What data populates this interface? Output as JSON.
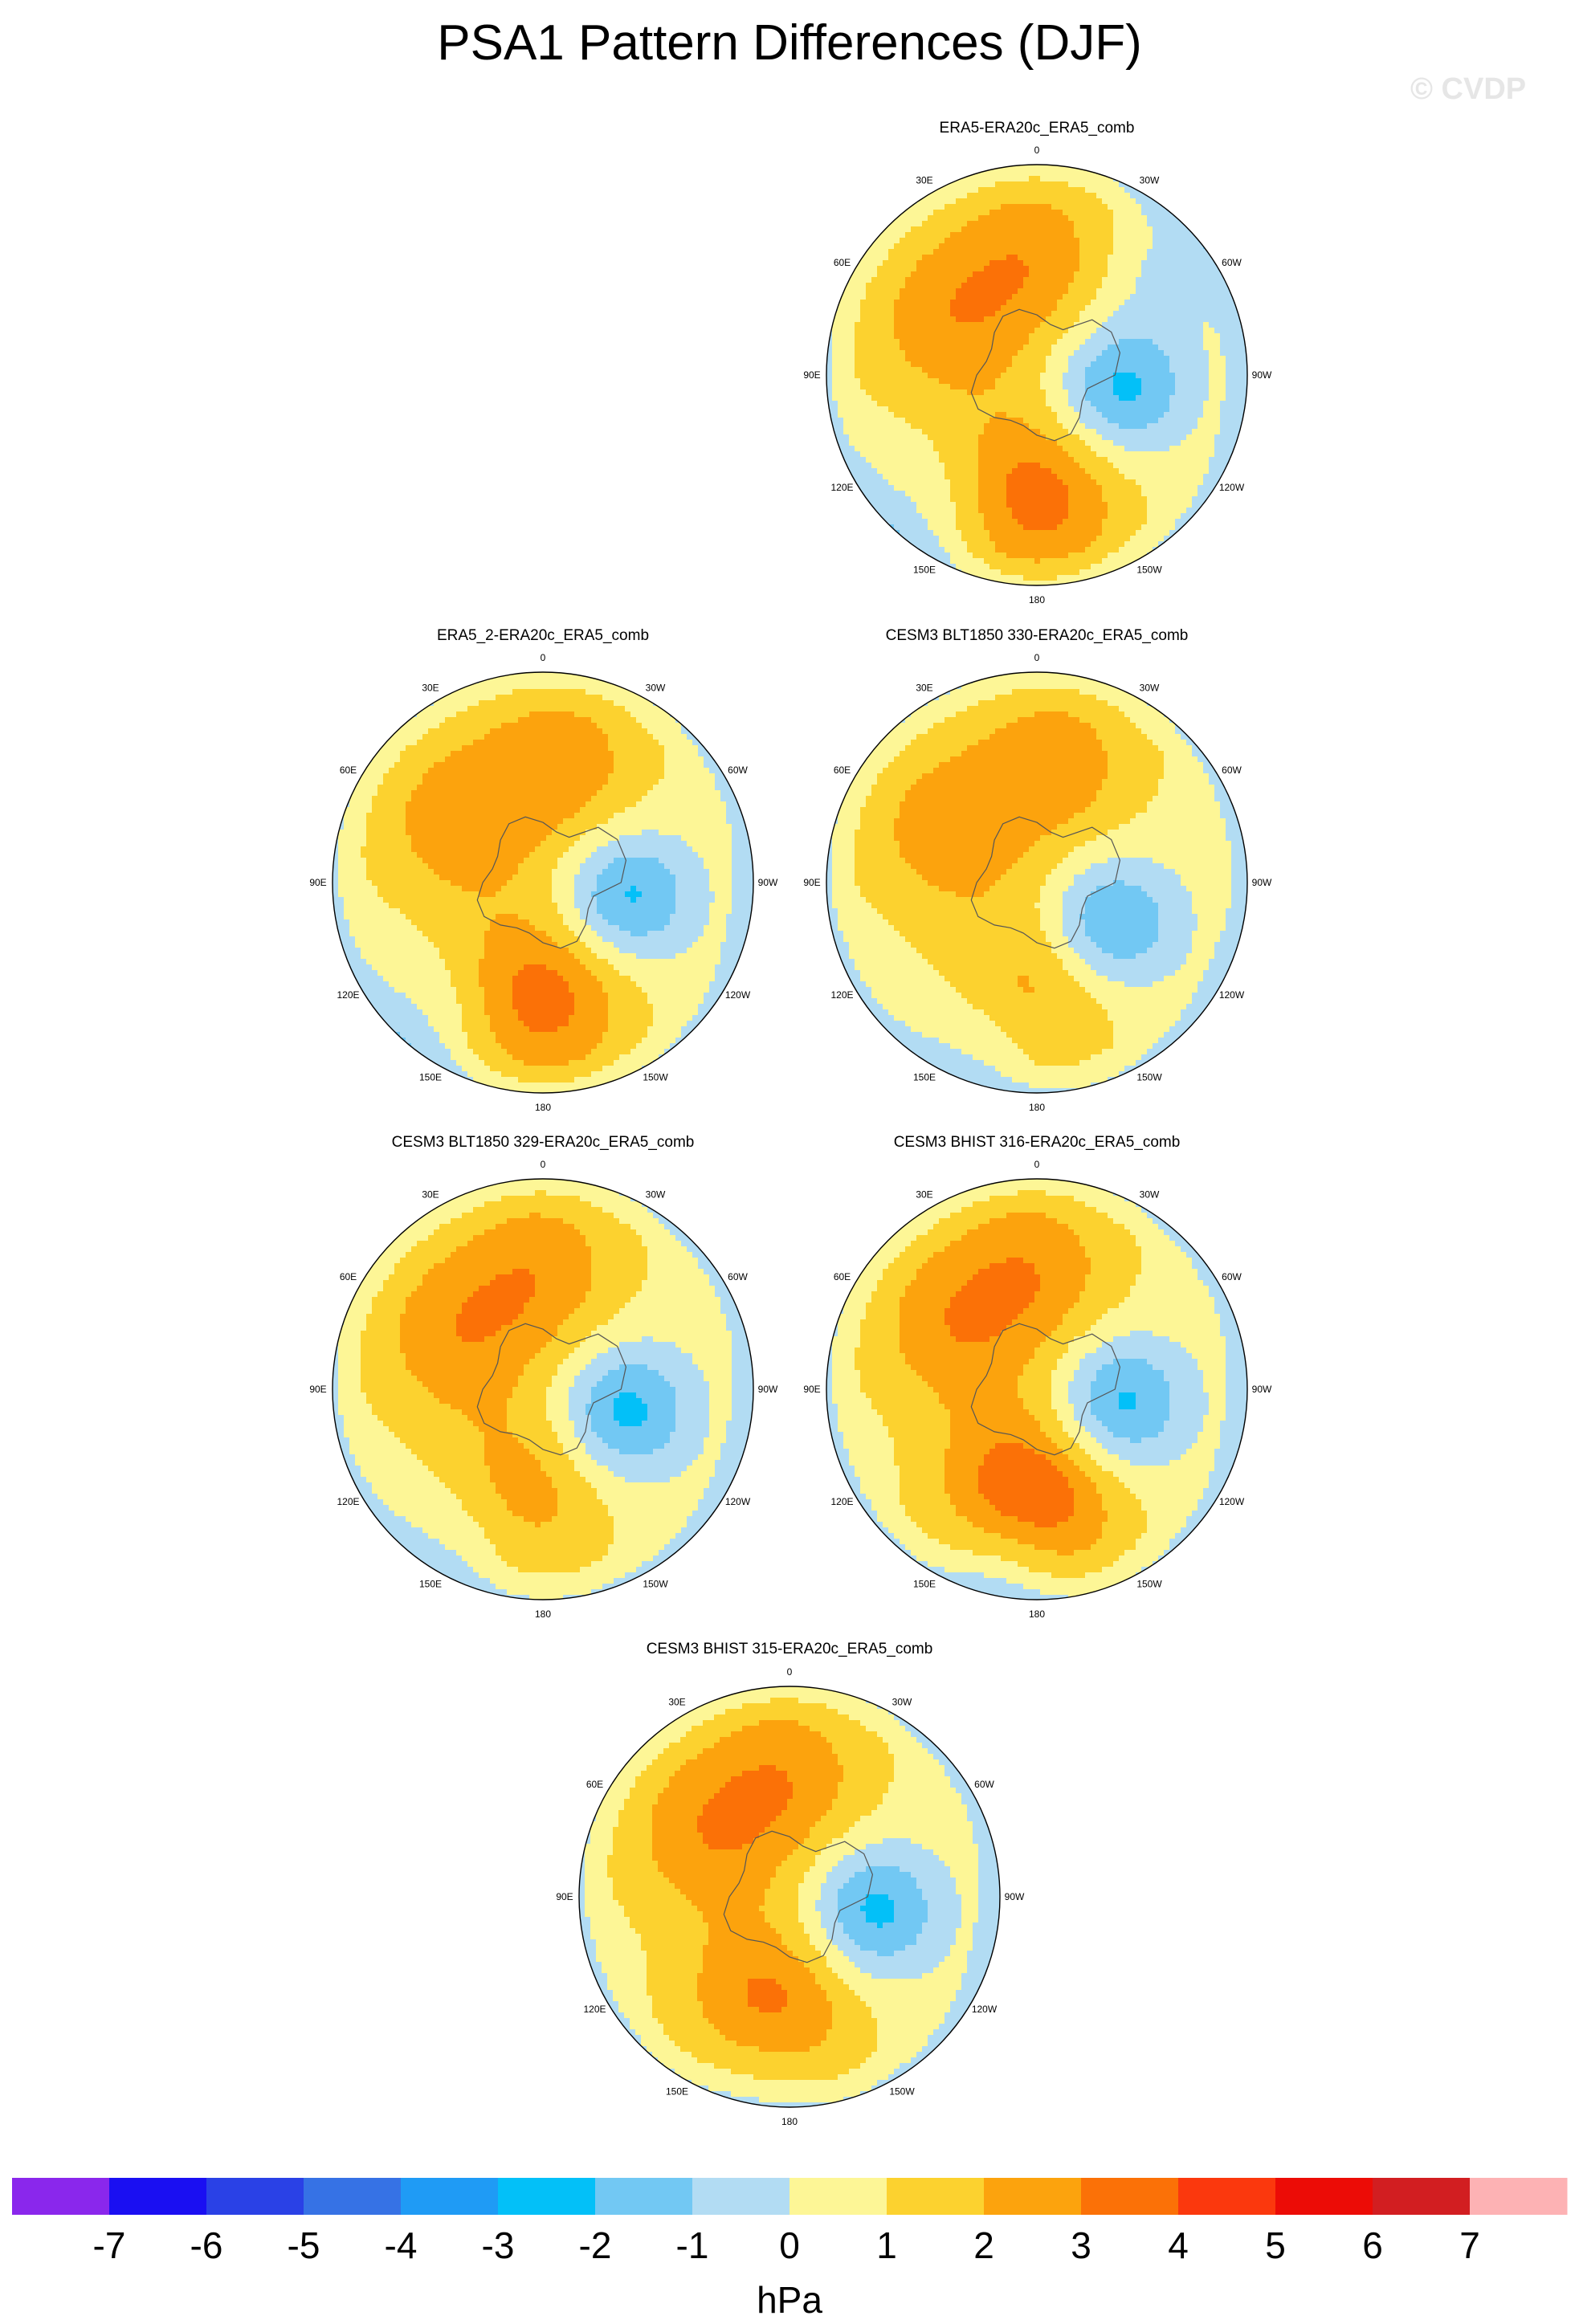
{
  "title": "PSA1 Pattern Differences (DJF)",
  "watermark": "© CVDP",
  "chart_data": [
    {
      "type": "heatmap",
      "projection": "south-polar-stereographic",
      "title": "ERA5-ERA20c_ERA5_comb",
      "field": "PSA1 SLP difference (hPa)",
      "longitude_labels": [
        "0",
        "30E",
        "60E",
        "90E",
        "120E",
        "150E",
        "180",
        "150W",
        "120W",
        "90W",
        "60W",
        "30W"
      ],
      "features": [
        {
          "kind": "low",
          "lon": -100,
          "lat": -62,
          "value": -3
        },
        {
          "kind": "high",
          "lon": 180,
          "lat": -50,
          "value": 3
        },
        {
          "kind": "high",
          "lon": 60,
          "lat": -55,
          "value": 2
        },
        {
          "kind": "high",
          "lon": 0,
          "lat": -50,
          "value": 2
        },
        {
          "kind": "low",
          "lon": 140,
          "lat": -30,
          "value": -1
        },
        {
          "kind": "low",
          "lon": -50,
          "lat": -35,
          "value": -1
        }
      ]
    },
    {
      "type": "heatmap",
      "projection": "south-polar-stereographic",
      "title": "ERA5_2-ERA20c_ERA5_comb",
      "field": "PSA1 SLP difference (hPa)",
      "longitude_labels": [
        "0",
        "30E",
        "60E",
        "90E",
        "120E",
        "150E",
        "180",
        "150W",
        "120W",
        "90W",
        "60W",
        "30W"
      ],
      "features": [
        {
          "kind": "low",
          "lon": -100,
          "lat": -62,
          "value": -3
        },
        {
          "kind": "high",
          "lon": 180,
          "lat": -52,
          "value": 3
        },
        {
          "kind": "high",
          "lon": 55,
          "lat": -55,
          "value": 2
        },
        {
          "kind": "high",
          "lon": -10,
          "lat": -50,
          "value": 2
        },
        {
          "kind": "low",
          "lon": 140,
          "lat": -30,
          "value": -1
        }
      ]
    },
    {
      "type": "heatmap",
      "projection": "south-polar-stereographic",
      "title": "CESM3 BLT1850 330-ERA20c_ERA5_comb",
      "field": "PSA1 SLP difference (hPa)",
      "longitude_labels": [
        "0",
        "30E",
        "60E",
        "90E",
        "120E",
        "150E",
        "180",
        "150W",
        "120W",
        "90W",
        "60W",
        "30W"
      ],
      "features": [
        {
          "kind": "low",
          "lon": -120,
          "lat": -62,
          "value": -3
        },
        {
          "kind": "high",
          "lon": 60,
          "lat": -55,
          "value": 2
        },
        {
          "kind": "high",
          "lon": -10,
          "lat": -50,
          "value": 2
        },
        {
          "kind": "high",
          "lon": 180,
          "lat": -55,
          "value": 2
        },
        {
          "kind": "low",
          "lon": 160,
          "lat": -32,
          "value": -1
        }
      ]
    },
    {
      "type": "heatmap",
      "projection": "south-polar-stereographic",
      "title": "CESM3 BLT1850 329-ERA20c_ERA5_comb",
      "field": "PSA1 SLP difference (hPa)",
      "longitude_labels": [
        "0",
        "30E",
        "60E",
        "90E",
        "120E",
        "150E",
        "180",
        "150W",
        "120W",
        "90W",
        "60W",
        "30W"
      ],
      "features": [
        {
          "kind": "low",
          "lon": -105,
          "lat": -62,
          "value": -3
        },
        {
          "kind": "high",
          "lon": 60,
          "lat": -55,
          "value": 2
        },
        {
          "kind": "high",
          "lon": 0,
          "lat": -50,
          "value": 2
        },
        {
          "kind": "high",
          "lon": 170,
          "lat": -55,
          "value": 2
        },
        {
          "kind": "low",
          "lon": 150,
          "lat": -32,
          "value": -1
        }
      ]
    },
    {
      "type": "heatmap",
      "projection": "south-polar-stereographic",
      "title": "CESM3 BHIST 316-ERA20c_ERA5_comb",
      "field": "PSA1 SLP difference (hPa)",
      "longitude_labels": [
        "0",
        "30E",
        "60E",
        "90E",
        "120E",
        "150E",
        "180",
        "150W",
        "120W",
        "90W",
        "60W",
        "30W"
      ],
      "features": [
        {
          "kind": "low",
          "lon": -100,
          "lat": -62,
          "value": -3
        },
        {
          "kind": "high",
          "lon": 175,
          "lat": -52,
          "value": 4
        },
        {
          "kind": "high",
          "lon": 55,
          "lat": -55,
          "value": 2
        },
        {
          "kind": "high",
          "lon": 0,
          "lat": -50,
          "value": 2
        },
        {
          "kind": "low",
          "lon": 170,
          "lat": -32,
          "value": -2
        }
      ]
    },
    {
      "type": "heatmap",
      "projection": "south-polar-stereographic",
      "title": "CESM3 BHIST 315-ERA20c_ERA5_comb",
      "field": "PSA1 SLP difference (hPa)",
      "longitude_labels": [
        "0",
        "30E",
        "60E",
        "90E",
        "120E",
        "150E",
        "180",
        "150W",
        "120W",
        "90W",
        "60W",
        "30W"
      ],
      "features": [
        {
          "kind": "low",
          "lon": -100,
          "lat": -62,
          "value": -3
        },
        {
          "kind": "high",
          "lon": 170,
          "lat": -52,
          "value": 3
        },
        {
          "kind": "high",
          "lon": 55,
          "lat": -55,
          "value": 2
        },
        {
          "kind": "high",
          "lon": 0,
          "lat": -50,
          "value": 2
        },
        {
          "kind": "low",
          "lon": 170,
          "lat": -32,
          "value": -1
        }
      ]
    }
  ],
  "colorbar": {
    "units": "hPa",
    "labels": [
      "-7",
      "-6",
      "-5",
      "-4",
      "-3",
      "-2",
      "-1",
      "0",
      "1",
      "2",
      "3",
      "4",
      "5",
      "6",
      "7"
    ],
    "colors": [
      "#8a27ec",
      "#1a0ff2",
      "#2a41e6",
      "#3672e5",
      "#1f9bf5",
      "#03c0f8",
      "#72c8f3",
      "#b2dcf3",
      "#fdf696",
      "#fcd22f",
      "#fca30d",
      "#fb7107",
      "#fb380d",
      "#ec0c06",
      "#d21e21",
      "#fdb2b4"
    ]
  }
}
